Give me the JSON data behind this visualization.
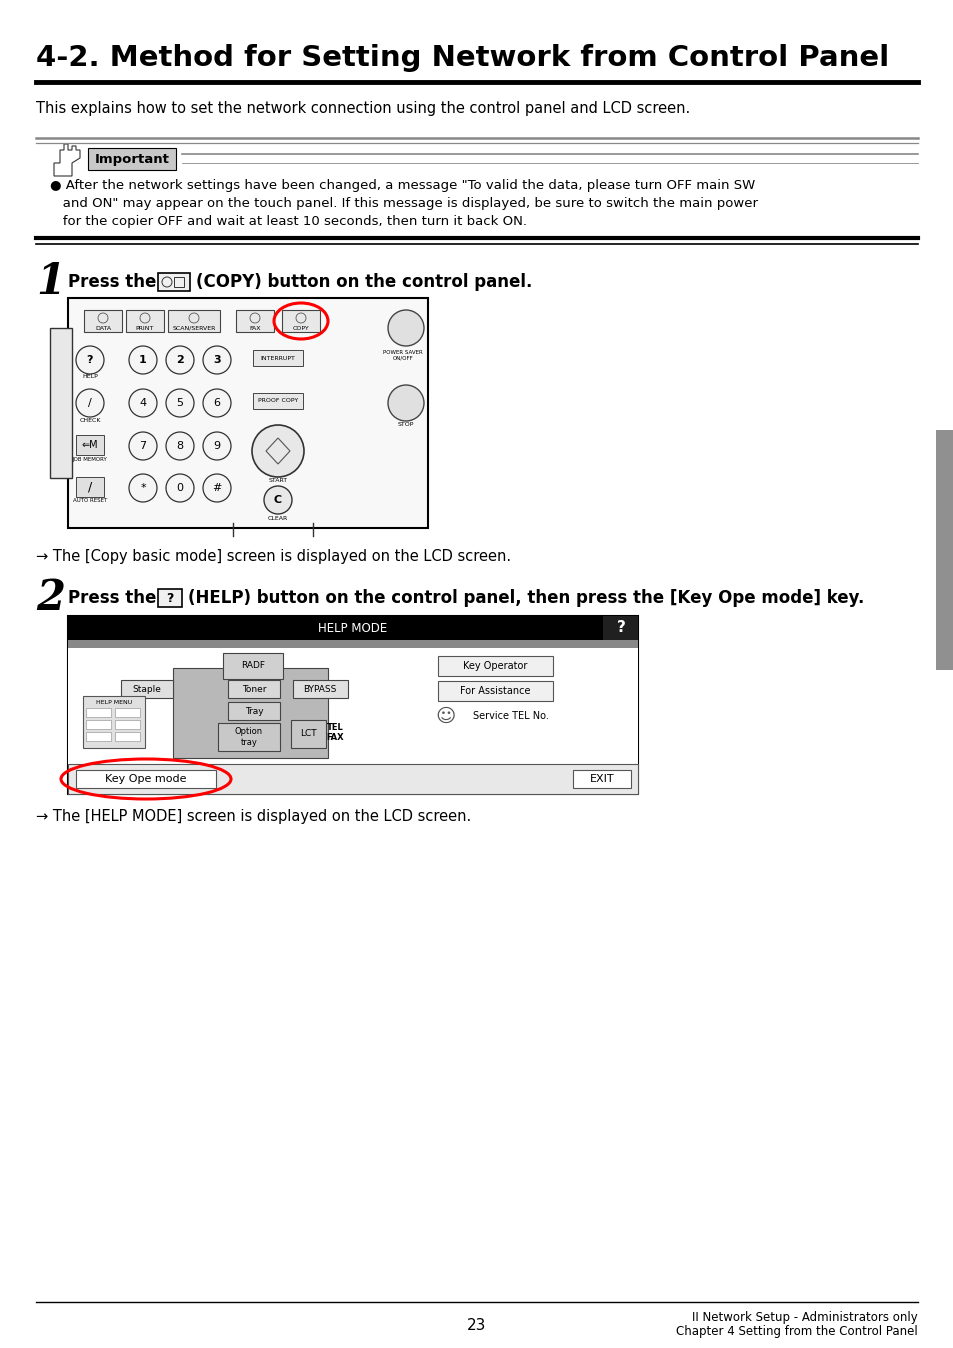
{
  "title": "4-2. Method for Setting Network from Control Panel",
  "subtitle": "This explains how to set the network connection using the control panel and LCD screen.",
  "important_line1": "● After the network settings have been changed, a message \"To valid the data, please turn OFF main SW",
  "important_line2": "   and ON\" may appear on the touch panel. If this message is displayed, be sure to switch the main power",
  "important_line3": "   for the copier OFF and wait at least 10 seconds, then turn it back ON.",
  "step1_arrow": "→ The [Copy basic mode] screen is displayed on the LCD screen.",
  "step2_arrow": "→ The [HELP MODE] screen is displayed on the LCD screen.",
  "page_number": "23",
  "footer_right1": "II Network Setup - Administrators only",
  "footer_right2": "Chapter 4 Setting from the Control Panel",
  "bg_color": "#ffffff"
}
